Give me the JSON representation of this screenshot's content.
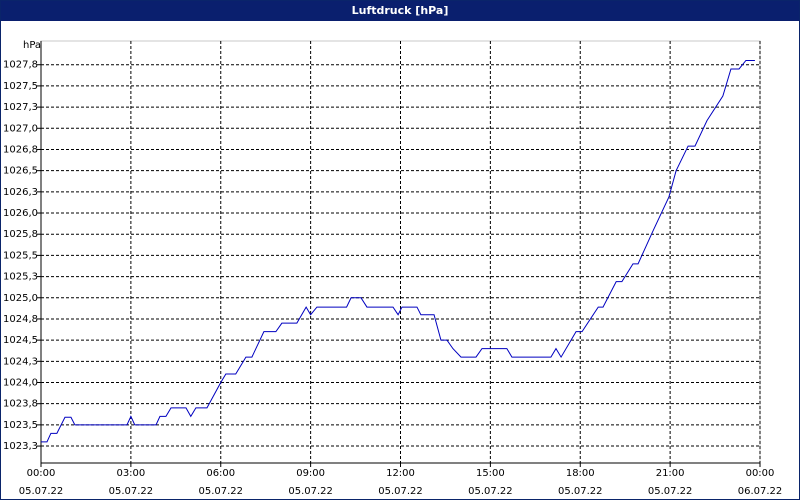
{
  "chart_data": {
    "type": "line",
    "title": "Luftdruck [hPa]",
    "y_label": "hPa",
    "x": [
      0,
      0.2,
      0.33,
      0.53,
      0.8,
      1.0,
      1.13,
      2.87,
      3.0,
      3.13,
      3.84,
      3.97,
      4.17,
      4.34,
      4.84,
      5.0,
      5.17,
      5.54,
      6.0,
      6.17,
      6.5,
      6.84,
      7.04,
      7.44,
      7.84,
      8.04,
      8.54,
      8.85,
      9.0,
      9.21,
      10.2,
      10.35,
      10.68,
      10.88,
      11.75,
      11.92,
      12.05,
      12.55,
      12.68,
      13.12,
      13.35,
      13.55,
      13.75,
      14.02,
      14.52,
      14.72,
      15.55,
      15.72,
      17.02,
      17.19,
      17.36,
      17.86,
      18.06,
      18.6,
      18.76,
      19.2,
      19.39,
      19.76,
      19.93,
      20.43,
      20.96,
      21.2,
      21.6,
      21.83,
      22.23,
      22.76,
      23.03,
      23.3,
      23.53,
      23.83
    ],
    "series": [
      {
        "name": "Luftdruck",
        "color": "#0000c0",
        "values": [
          1023.3,
          1023.3,
          1023.4,
          1023.4,
          1023.59,
          1023.59,
          1023.5,
          1023.5,
          1023.6,
          1023.5,
          1023.5,
          1023.6,
          1023.6,
          1023.7,
          1023.7,
          1023.6,
          1023.7,
          1023.7,
          1024.0,
          1024.1,
          1024.1,
          1024.3,
          1024.3,
          1024.6,
          1024.6,
          1024.7,
          1024.7,
          1024.89,
          1024.8,
          1024.89,
          1024.89,
          1025.0,
          1025.0,
          1024.89,
          1024.89,
          1024.8,
          1024.89,
          1024.89,
          1024.8,
          1024.8,
          1024.5,
          1024.5,
          1024.4,
          1024.3,
          1024.3,
          1024.4,
          1024.4,
          1024.3,
          1024.3,
          1024.4,
          1024.3,
          1024.6,
          1024.6,
          1024.89,
          1024.89,
          1025.19,
          1025.19,
          1025.4,
          1025.4,
          1025.79,
          1026.19,
          1026.5,
          1026.79,
          1026.79,
          1027.09,
          1027.38,
          1027.7,
          1027.7,
          1027.8,
          1027.8
        ]
      }
    ],
    "xlim": [
      0,
      24
    ],
    "ylim": [
      1023.05,
      1028.03
    ],
    "xticks": [
      {
        "value": 0,
        "label": "00:00 05.07.22"
      },
      {
        "value": 3,
        "label": "03:00 05.07.22"
      },
      {
        "value": 6,
        "label": "06:00 05.07.22"
      },
      {
        "value": 9,
        "label": "09:00 05.07.22"
      },
      {
        "value": 12,
        "label": "12:00 05.07.22"
      },
      {
        "value": 15,
        "label": "15:00 05.07.22"
      },
      {
        "value": 18,
        "label": "18:00 05.07.22"
      },
      {
        "value": 21,
        "label": "21:00 05.07.22"
      },
      {
        "value": 24,
        "label": "00:00 06.07.22"
      }
    ],
    "yticks": [
      {
        "value": 1023.25,
        "label": "1023,3"
      },
      {
        "value": 1023.5,
        "label": "1023,5"
      },
      {
        "value": 1023.75,
        "label": "1023,8"
      },
      {
        "value": 1024.0,
        "label": "1024,0"
      },
      {
        "value": 1024.25,
        "label": "1024,3"
      },
      {
        "value": 1024.5,
        "label": "1024,5"
      },
      {
        "value": 1024.75,
        "label": "1024,8"
      },
      {
        "value": 1025.0,
        "label": "1025,0"
      },
      {
        "value": 1025.25,
        "label": "1025,3"
      },
      {
        "value": 1025.5,
        "label": "1025,5"
      },
      {
        "value": 1025.75,
        "label": "1025,8"
      },
      {
        "value": 1026.0,
        "label": "1026,0"
      },
      {
        "value": 1026.25,
        "label": "1026,3"
      },
      {
        "value": 1026.5,
        "label": "1026,5"
      },
      {
        "value": 1026.75,
        "label": "1026,8"
      },
      {
        "value": 1027.0,
        "label": "1027,0"
      },
      {
        "value": 1027.25,
        "label": "1027,3"
      },
      {
        "value": 1027.5,
        "label": "1027,5"
      },
      {
        "value": 1027.75,
        "label": "1027,8"
      }
    ],
    "grid": true
  }
}
